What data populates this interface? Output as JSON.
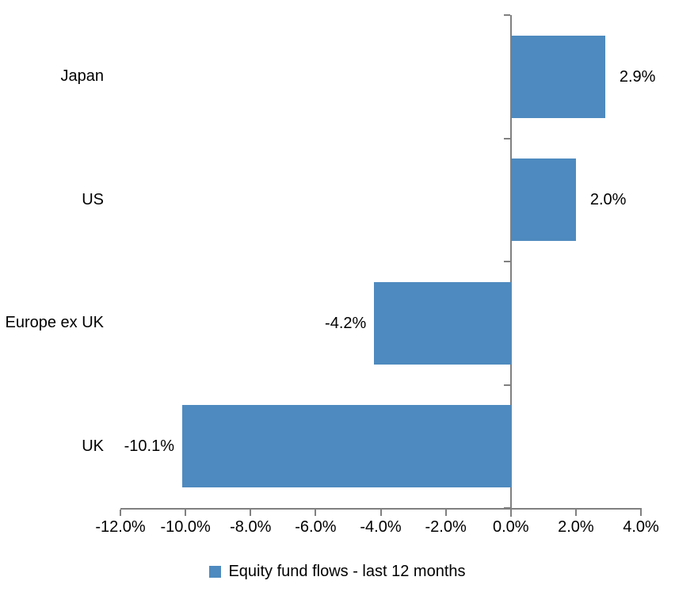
{
  "chart_data": {
    "type": "bar",
    "orientation": "horizontal",
    "title": "",
    "categories": [
      "Japan",
      "US",
      "Europe ex UK",
      "UK"
    ],
    "values": [
      2.9,
      2.0,
      -4.2,
      -10.1
    ],
    "value_labels": [
      "2.9%",
      "2.0%",
      "-4.2%",
      "-10.1%"
    ],
    "series_name": "Equity fund flows - last 12 months",
    "xlim": [
      -12,
      4
    ],
    "x_tick_step": 2,
    "x_tick_labels": [
      "-12.0%",
      "-10.0%",
      "-8.0%",
      "-6.0%",
      "-4.0%",
      "-2.0%",
      "0.0%",
      "2.0%",
      "4.0%"
    ],
    "grid": false,
    "legend_position": "bottom",
    "bar_color": "#4E8ABF",
    "axis_color": "#808080",
    "text_color": "#000000"
  },
  "legend": {
    "label": "Equity fund flows - last 12 months"
  }
}
